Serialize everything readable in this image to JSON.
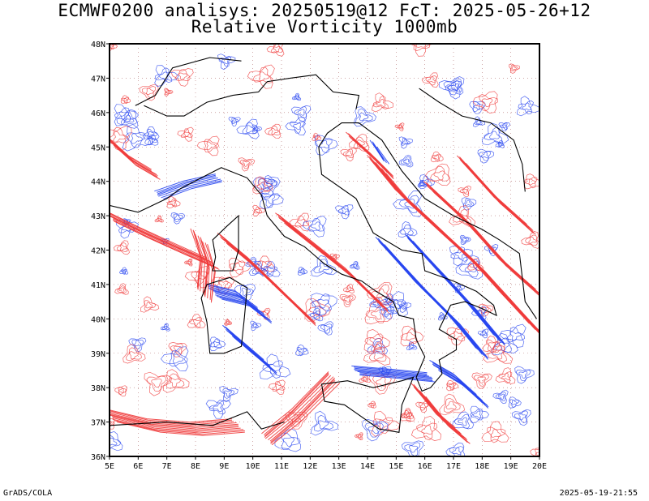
{
  "header": {
    "title_line1": "ECMWF0200 analisys: 20250519@12 FcT: 2025-05-26+12",
    "title_line2": "Relative Vorticity 1000mb"
  },
  "map": {
    "lon_range": [
      5,
      20
    ],
    "lat_range": [
      36,
      48
    ],
    "lon_ticks": [
      "5E",
      "6E",
      "7E",
      "8E",
      "9E",
      "10E",
      "11E",
      "12E",
      "13E",
      "14E",
      "15E",
      "16E",
      "17E",
      "18E",
      "19E",
      "20E"
    ],
    "lat_ticks": [
      "36N",
      "37N",
      "38N",
      "39N",
      "40N",
      "41N",
      "42N",
      "43N",
      "44N",
      "45N",
      "46N",
      "47N",
      "48N"
    ],
    "colors": {
      "positive_vorticity": "#f03c3c",
      "negative_vorticity": "#2846f0",
      "coastline": "#000000",
      "grid": "#b07070"
    }
  },
  "footer": {
    "left": "GrADS/COLA",
    "right": "2025-05-19-21:55"
  }
}
